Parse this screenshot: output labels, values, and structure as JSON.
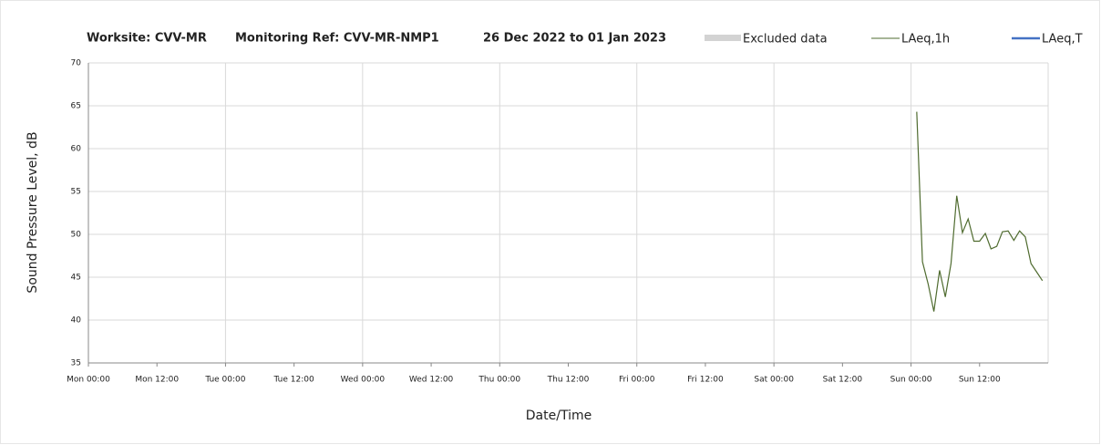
{
  "chart_data": {
    "type": "line",
    "title": [
      "Worksite: CVV-MR",
      "Monitoring Ref: CVV-MR-NMP1",
      "26 Dec 2022 to 01 Jan 2023"
    ],
    "xlabel": "Date/Time",
    "ylabel": "Sound Pressure Level, dB",
    "xlim": [
      0,
      168
    ],
    "ylim": [
      35,
      70
    ],
    "yticks": [
      35,
      40,
      45,
      50,
      55,
      60,
      65,
      70
    ],
    "xticks": [
      {
        "value": 0,
        "label": "Mon 00:00"
      },
      {
        "value": 12,
        "label": "Mon 12:00"
      },
      {
        "value": 24,
        "label": "Tue 00:00"
      },
      {
        "value": 36,
        "label": "Tue 12:00"
      },
      {
        "value": 48,
        "label": "Wed 00:00"
      },
      {
        "value": 60,
        "label": "Wed 12:00"
      },
      {
        "value": 72,
        "label": "Thu 00:00"
      },
      {
        "value": 84,
        "label": "Thu 12:00"
      },
      {
        "value": 96,
        "label": "Fri 00:00"
      },
      {
        "value": 108,
        "label": "Fri 12:00"
      },
      {
        "value": 120,
        "label": "Sat 00:00"
      },
      {
        "value": 132,
        "label": "Sat 12:00"
      },
      {
        "value": 144,
        "label": "Sun 00:00"
      },
      {
        "value": 156,
        "label": "Sun 12:00"
      }
    ],
    "xgrid": [
      24,
      48,
      72,
      96,
      120,
      144,
      168
    ],
    "grid": true,
    "x": [
      145,
      146,
      147,
      148,
      149,
      150,
      151,
      152,
      153,
      154,
      155,
      156,
      157,
      158,
      159,
      160,
      161,
      162,
      163,
      164,
      165,
      166,
      167
    ],
    "series": [
      {
        "name": "Excluded data",
        "color": "#d3d3d3",
        "kind": "area",
        "values": [
          null,
          null,
          null,
          null,
          null,
          null,
          null,
          null,
          null,
          null,
          null,
          null,
          null,
          null,
          null,
          null,
          null,
          null,
          null,
          null,
          null,
          null,
          null
        ]
      },
      {
        "name": "LAeq,1h",
        "color": "#4f6b2f",
        "kind": "line",
        "values": [
          64.3,
          46.8,
          44.2,
          41.0,
          45.8,
          42.7,
          46.6,
          54.5,
          50.2,
          51.8,
          49.2,
          49.2,
          50.1,
          48.3,
          48.6,
          50.3,
          50.4,
          49.3,
          50.4,
          49.7,
          46.6,
          45.6,
          44.6
        ]
      },
      {
        "name": "LAeq,T",
        "color": "#4472c4",
        "kind": "line",
        "values": [
          null,
          null,
          null,
          null,
          null,
          null,
          null,
          null,
          null,
          null,
          null,
          null,
          null,
          null,
          null,
          null,
          null,
          null,
          null,
          null,
          null,
          null,
          null
        ]
      }
    ]
  }
}
